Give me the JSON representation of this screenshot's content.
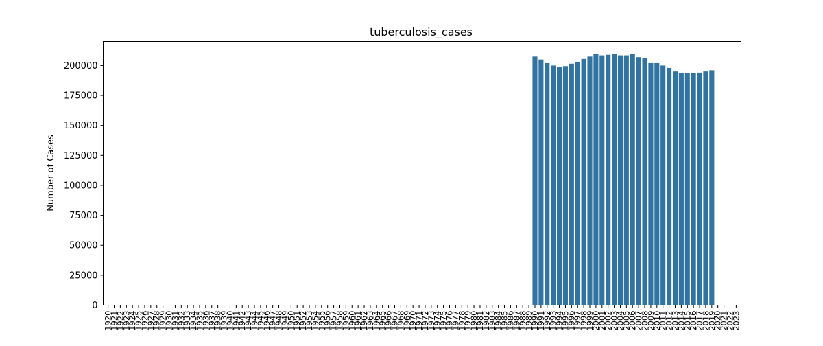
{
  "chart_data": {
    "type": "bar",
    "title": "tuberculosis_cases",
    "xlabel": "",
    "ylabel": "Number of Cases",
    "ylim": [
      0,
      220000
    ],
    "yticks": [
      0,
      25000,
      50000,
      75000,
      100000,
      125000,
      150000,
      175000,
      200000
    ],
    "bar_color": "#3274a1",
    "categories": [
      "1920",
      "1921",
      "1922",
      "1923",
      "1924",
      "1925",
      "1926",
      "1927",
      "1928",
      "1929",
      "1930",
      "1931",
      "1932",
      "1933",
      "1934",
      "1935",
      "1936",
      "1937",
      "1938",
      "1939",
      "1940",
      "1941",
      "1942",
      "1943",
      "1944",
      "1945",
      "1946",
      "1947",
      "1948",
      "1949",
      "1950",
      "1951",
      "1952",
      "1953",
      "1954",
      "1955",
      "1956",
      "1957",
      "1958",
      "1959",
      "1960",
      "1961",
      "1962",
      "1963",
      "1964",
      "1965",
      "1966",
      "1967",
      "1968",
      "1969",
      "1970",
      "1971",
      "1972",
      "1973",
      "1974",
      "1975",
      "1976",
      "1977",
      "1978",
      "1979",
      "1980",
      "1981",
      "1982",
      "1983",
      "1984",
      "1985",
      "1986",
      "1987",
      "1988",
      "1989",
      "1990",
      "1991",
      "1992",
      "1993",
      "1994",
      "1995",
      "1996",
      "1997",
      "1998",
      "1999",
      "2000",
      "2001",
      "2002",
      "2003",
      "2004",
      "2005",
      "2006",
      "2007",
      "2008",
      "2009",
      "2010",
      "2011",
      "2012",
      "2013",
      "2014",
      "2015",
      "2016",
      "2017",
      "2018",
      "2019",
      "2020",
      "2021",
      "2022",
      "2023"
    ],
    "values": [
      null,
      null,
      null,
      null,
      null,
      null,
      null,
      null,
      null,
      null,
      null,
      null,
      null,
      null,
      null,
      null,
      null,
      null,
      null,
      null,
      null,
      null,
      null,
      null,
      null,
      null,
      null,
      null,
      null,
      null,
      null,
      null,
      null,
      null,
      null,
      null,
      null,
      null,
      null,
      null,
      null,
      null,
      null,
      null,
      null,
      null,
      null,
      null,
      null,
      null,
      null,
      null,
      null,
      null,
      null,
      null,
      null,
      null,
      null,
      null,
      null,
      null,
      null,
      null,
      null,
      null,
      null,
      null,
      null,
      null,
      207500,
      205000,
      202000,
      200000,
      198500,
      199500,
      201500,
      203000,
      205500,
      207500,
      209500,
      208500,
      209000,
      209500,
      208500,
      208500,
      210000,
      207000,
      206000,
      202000,
      202000,
      200000,
      198000,
      195000,
      193500,
      193500,
      193500,
      194000,
      195000,
      196000,
      null,
      null,
      null,
      null
    ]
  }
}
